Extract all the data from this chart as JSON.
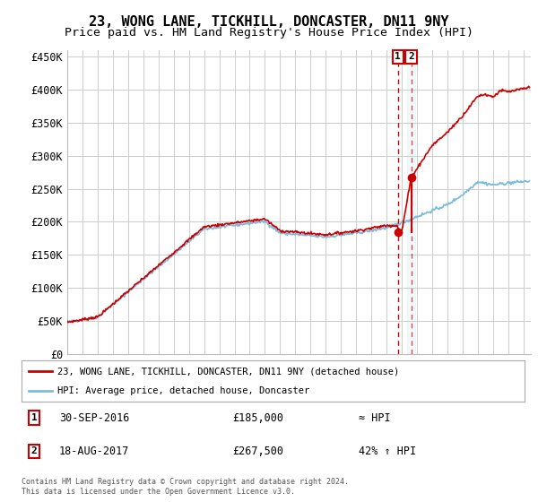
{
  "title": "23, WONG LANE, TICKHILL, DONCASTER, DN11 9NY",
  "subtitle": "Price paid vs. HM Land Registry's House Price Index (HPI)",
  "title_fontsize": 11,
  "subtitle_fontsize": 9.5,
  "ylabel_ticks": [
    "£0",
    "£50K",
    "£100K",
    "£150K",
    "£200K",
    "£250K",
    "£300K",
    "£350K",
    "£400K",
    "£450K"
  ],
  "ytick_values": [
    0,
    50000,
    100000,
    150000,
    200000,
    250000,
    300000,
    350000,
    400000,
    450000
  ],
  "ylim": [
    0,
    460000
  ],
  "xlim_start": 1995,
  "xlim_end": 2025.5,
  "sale1_date": 2016.75,
  "sale1_price": 185000,
  "sale2_date": 2017.62,
  "sale2_price": 267500,
  "hpi_color": "#7bbcde",
  "price_color": "#cc0000",
  "annotation_box_color": "#cc0000",
  "vline_color": "#cc0000",
  "legend_label_price": "23, WONG LANE, TICKHILL, DONCASTER, DN11 9NY (detached house)",
  "legend_label_hpi": "HPI: Average price, detached house, Doncaster",
  "note1_date": "30-SEP-2016",
  "note1_price": "£185,000",
  "note1_hpi": "≈ HPI",
  "note2_date": "18-AUG-2017",
  "note2_price": "£267,500",
  "note2_hpi": "42% ↑ HPI",
  "footer": "Contains HM Land Registry data © Crown copyright and database right 2024.\nThis data is licensed under the Open Government Licence v3.0.",
  "background_color": "#ffffff",
  "grid_color": "#cccccc"
}
